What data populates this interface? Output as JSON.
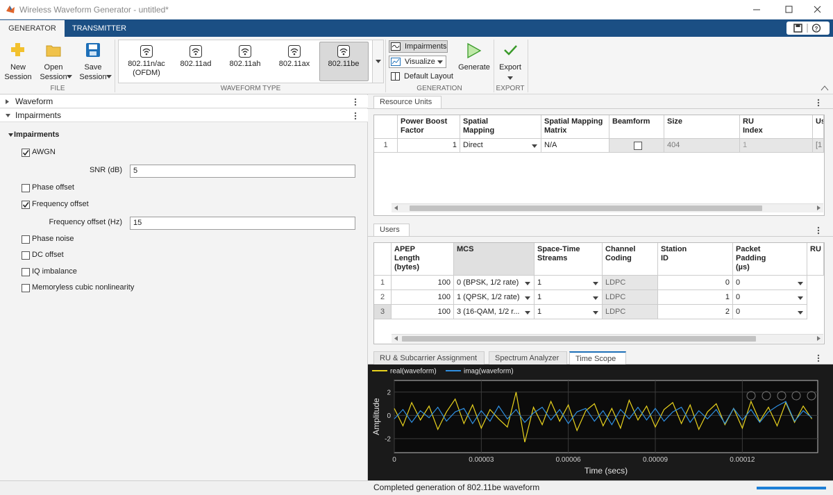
{
  "window": {
    "title": "Wireless Waveform Generator - untitled*"
  },
  "tabs": [
    "GENERATOR",
    "TRANSMITTER"
  ],
  "toolstrip": {
    "file": {
      "label": "FILE",
      "buttons": [
        "New\nSession",
        "Open\nSession",
        "Save\nSession"
      ]
    },
    "waveform_type": {
      "label": "WAVEFORM TYPE",
      "items": [
        "802.11n/ac\n(OFDM)",
        "802.11ad",
        "802.11ah",
        "802.11ax",
        "802.11be"
      ],
      "selected": 4
    },
    "generation": {
      "label": "GENERATION",
      "impairments": "Impairments",
      "visualize": "Visualize",
      "default_layout": "Default Layout",
      "generate": "Generate"
    },
    "export": {
      "label": "EXPORT",
      "button": "Export"
    }
  },
  "left_panel": {
    "sections": [
      "Waveform",
      "Impairments"
    ],
    "group": "Impairments",
    "items": [
      {
        "label": "AWGN",
        "checked": true
      },
      {
        "label": "SNR (dB)",
        "value": "5"
      },
      {
        "label": "Phase offset",
        "checked": false
      },
      {
        "label": "Frequency offset",
        "checked": true
      },
      {
        "label": "Frequency offset (Hz)",
        "value": "15"
      },
      {
        "label": "Phase noise",
        "checked": false
      },
      {
        "label": "DC offset",
        "checked": false
      },
      {
        "label": "IQ imbalance",
        "checked": false
      },
      {
        "label": "Memoryless cubic nonlinearity",
        "checked": false
      }
    ]
  },
  "resource_units": {
    "title": "Resource Units",
    "columns": [
      "Power Boost\nFactor",
      "Spatial\nMapping",
      "Spatial Mapping\nMatrix",
      "Beamform",
      "Size",
      "RU\nIndex",
      "Us"
    ],
    "rows": [
      [
        1,
        1,
        "Direct",
        "N/A",
        false,
        404,
        1,
        "[1"
      ]
    ]
  },
  "users": {
    "title": "Users",
    "columns": [
      "APEP\nLength\n(bytes)",
      "MCS",
      "Space-Time\nStreams",
      "Channel\nCoding",
      "Station\nID",
      "Packet\nPadding\n(µs)",
      "RU"
    ],
    "rows": [
      [
        1,
        100,
        "0 (BPSK, 1/2 rate)",
        1,
        "LDPC",
        0,
        0
      ],
      [
        2,
        100,
        "1 (QPSK, 1/2 rate)",
        1,
        "LDPC",
        1,
        0
      ],
      [
        3,
        100,
        "3 (16-QAM, 1/2 r...",
        1,
        "LDPC",
        2,
        0
      ]
    ]
  },
  "scope_tabs": [
    "RU & Subcarrier Assignment",
    "Spectrum Analyzer",
    "Time Scope"
  ],
  "active_scope_tab": 2,
  "chart_data": {
    "type": "line",
    "xlabel": "Time (secs)",
    "ylabel": "Amplitude",
    "xlim": [
      0,
      0.000146
    ],
    "ylim": [
      -3.2,
      3
    ],
    "xticks": [
      0,
      3e-05,
      6e-05,
      9e-05,
      0.00012
    ],
    "yticks": [
      -2,
      0,
      2
    ],
    "grid": true,
    "x": [
      0,
      3e-06,
      6e-06,
      9e-06,
      1.2e-05,
      1.5e-05,
      1.8e-05,
      2.1e-05,
      2.4e-05,
      2.7e-05,
      3e-05,
      3.3e-05,
      3.6e-05,
      3.9e-05,
      4.2e-05,
      4.5e-05,
      4.8e-05,
      5.1e-05,
      5.4e-05,
      5.7e-05,
      6e-05,
      6.3e-05,
      6.6e-05,
      6.9e-05,
      7.2e-05,
      7.5e-05,
      7.8e-05,
      8.1e-05,
      8.4e-05,
      8.7e-05,
      9e-05,
      9.3e-05,
      9.6e-05,
      9.9e-05,
      0.000102,
      0.000105,
      0.000108,
      0.000111,
      0.000114,
      0.000117,
      0.00012,
      0.000123,
      0.000126,
      0.000129,
      0.000132,
      0.000135,
      0.000138,
      0.000141,
      0.000144
    ],
    "series": [
      {
        "name": "real(waveform)",
        "color": "#e8d21d",
        "values": [
          0.6,
          -0.9,
          1.1,
          -0.4,
          0.8,
          -1.2,
          0.3,
          1.4,
          -0.7,
          0.9,
          -1.1,
          0.5,
          -0.3,
          -1.0,
          2.0,
          -2.3,
          0.7,
          -0.8,
          1.2,
          -0.5,
          0.9,
          -1.3,
          0.4,
          1.0,
          -0.9,
          0.6,
          -1.1,
          1.3,
          -0.4,
          0.8,
          -1.0,
          0.5,
          1.1,
          -0.7,
          0.9,
          -1.2,
          0.3,
          1.0,
          -0.8,
          0.6,
          -1.1,
          1.2,
          -0.5,
          0.7,
          -0.9,
          1.1,
          -0.6,
          0.8,
          -0.3
        ]
      },
      {
        "name": "imag(waveform)",
        "color": "#2f8fe0",
        "values": [
          -0.3,
          0.5,
          -0.6,
          0.4,
          -0.2,
          0.7,
          -0.5,
          0.3,
          0.6,
          -0.7,
          0.4,
          -0.5,
          0.8,
          -0.3,
          0.5,
          -0.6,
          0.2,
          0.7,
          -0.4,
          0.5,
          -0.7,
          0.3,
          0.6,
          -0.5,
          0.4,
          -0.8,
          0.5,
          -0.3,
          0.7,
          -0.4,
          0.6,
          -0.5,
          0.3,
          0.7,
          -0.6,
          0.4,
          -0.3,
          0.5,
          -0.7,
          0.6,
          -0.4,
          0.5,
          -0.6,
          0.3,
          0.8,
          1.2,
          -0.5,
          0.4,
          -0.2
        ]
      }
    ]
  },
  "status": "Completed generation of 802.11be waveform"
}
